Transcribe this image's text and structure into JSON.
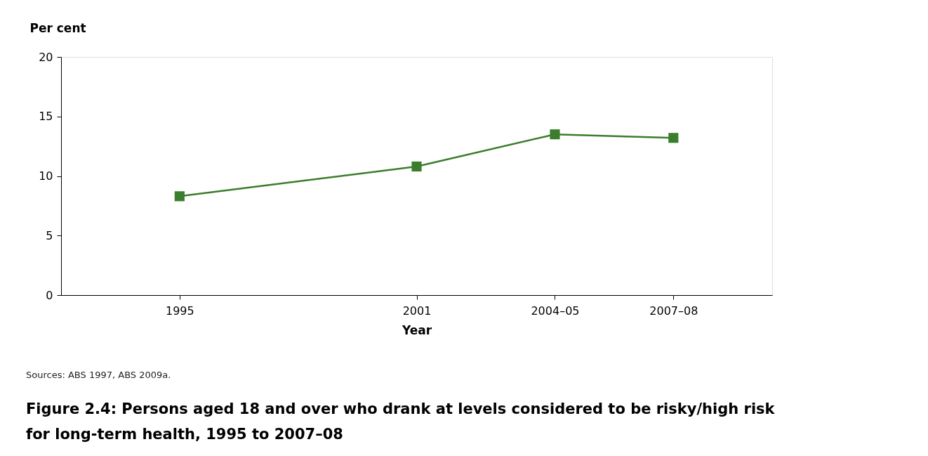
{
  "chart_data": {
    "type": "line",
    "title": "Figure 2.4: Persons aged 18 and over who drank at levels considered to be risky/high risk for long-term health, 1995 to 2007–08",
    "xlabel": "Year",
    "ylabel": "Per cent",
    "x": [
      1995,
      2001,
      2004.5,
      2007.5
    ],
    "series": [
      {
        "color": "#3a7d2c",
        "values": [
          8.3,
          10.8,
          13.5,
          13.2
        ]
      }
    ],
    "xlim": [
      1992,
      2010
    ],
    "xticks": [
      1995,
      2001,
      {
        "value": 2004.5,
        "label": "2004–05"
      },
      {
        "value": 2007.5,
        "label": "2007–08"
      }
    ],
    "ylim": [
      0,
      20
    ],
    "yticks": [
      0,
      5,
      10,
      15,
      20
    ],
    "grid": false,
    "marker": "square",
    "line_style": "solid",
    "annotations": [
      "Sources: ABS 1997, ABS 2009a."
    ]
  }
}
